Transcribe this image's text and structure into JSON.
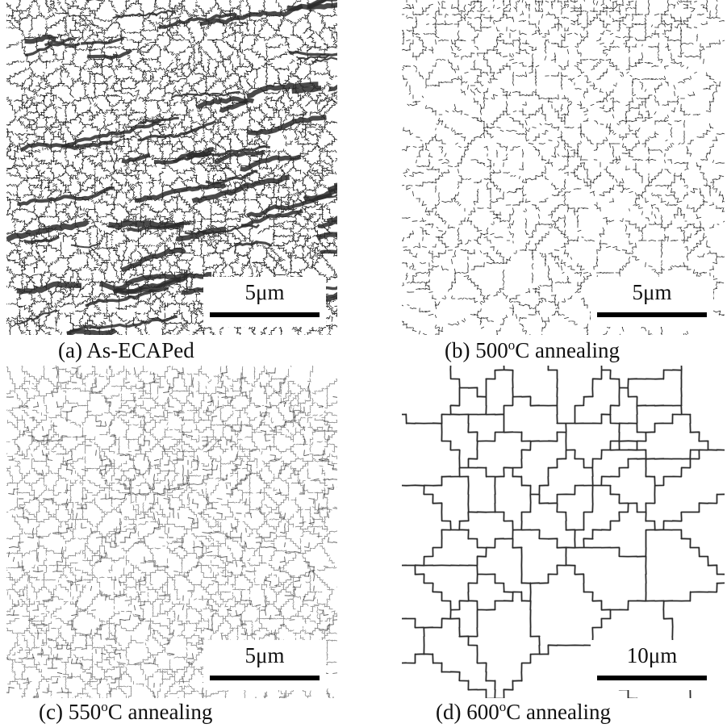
{
  "figure": {
    "panels": [
      {
        "id": "a",
        "caption_pre": "(a) As-ECAPed",
        "caption_sup": "",
        "caption_post": "",
        "scale_label": "5μm",
        "texture": "dense-deformed"
      },
      {
        "id": "b",
        "caption_pre": "(b) 500",
        "caption_sup": "o",
        "caption_post": "C annealing",
        "scale_label": "5μm",
        "texture": "partially-recovered"
      },
      {
        "id": "c",
        "caption_pre": "(c) 550",
        "caption_sup": "o",
        "caption_post": "C annealing",
        "scale_label": "5μm",
        "texture": "fine-recrystallized"
      },
      {
        "id": "d",
        "caption_pre": "(d) 600",
        "caption_sup": "o",
        "caption_post": "C annealing",
        "scale_label": "10μm",
        "texture": "coarse-grains"
      }
    ],
    "colors": {
      "boundary": "#2a2a2a",
      "light_boundary": "#8a8a8a",
      "background": "#ffffff"
    }
  }
}
